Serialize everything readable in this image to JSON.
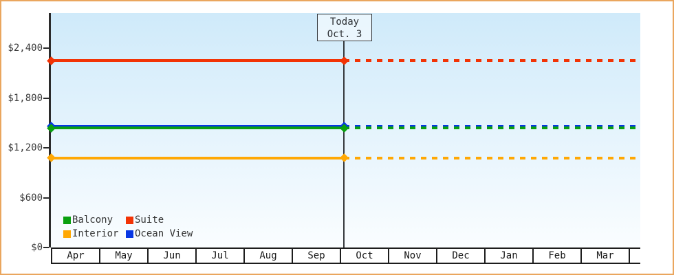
{
  "colors": {
    "frame_border": "#eaa65e",
    "plot_bg_top": "#cfeafa",
    "plot_bg_bottom": "#fafdff",
    "axis": "#2b2b2b",
    "text": "#3a3a3a"
  },
  "chart_data": {
    "type": "line",
    "title": "",
    "xlabel": "",
    "ylabel": "",
    "x_axis": {
      "months": [
        "Apr",
        "May",
        "Jun",
        "Jul",
        "Aug",
        "Sep",
        "Oct",
        "Nov",
        "Dec",
        "Jan",
        "Feb",
        "Mar"
      ]
    },
    "y_axis": {
      "ticks": [
        {
          "label": "$0",
          "value": 0
        },
        {
          "label": "$600",
          "value": 600
        },
        {
          "label": "$1,200",
          "value": 1200
        },
        {
          "label": "$1,800",
          "value": 1800
        },
        {
          "label": "$2,400",
          "value": 2400
        }
      ],
      "ylim": [
        0,
        2400
      ]
    },
    "today": {
      "label_line1": "Today",
      "label_line2": "Oct. 3",
      "month_index": 6,
      "fraction": 0.09
    },
    "style_note": "flat price lines, solid before today, dashed after today, diamond markers at start and at today",
    "grid": false,
    "series": [
      {
        "name": "Suite",
        "color": "#f23305",
        "price": 2250
      },
      {
        "name": "Ocean View",
        "color": "#0636e4",
        "price": 1460
      },
      {
        "name": "Balcony",
        "color": "#0aa00f",
        "price": 1440
      },
      {
        "name": "Interior",
        "color": "#ffa804",
        "price": 1080
      }
    ]
  },
  "legend": [
    {
      "label": "Balcony",
      "color": "#0aa00f"
    },
    {
      "label": "Suite",
      "color": "#f23305"
    },
    {
      "label": "Interior",
      "color": "#ffa804"
    },
    {
      "label": "Ocean View",
      "color": "#0636e4"
    }
  ]
}
